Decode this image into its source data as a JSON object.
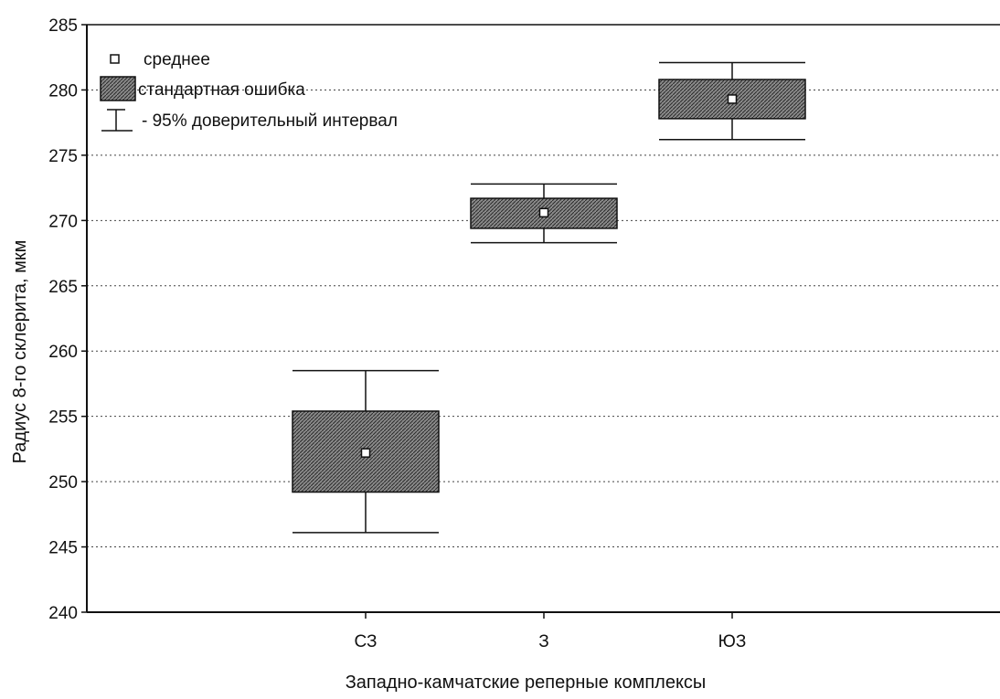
{
  "chart_data": {
    "type": "box",
    "title": "",
    "xlabel": "Западно-камчатские реперные комплексы",
    "ylabel": "Радиус 8-го склерита, мкм",
    "categories": [
      "СЗ",
      "З",
      "ЮЗ"
    ],
    "ylim": [
      240,
      285
    ],
    "yticks": [
      240,
      245,
      250,
      255,
      260,
      265,
      270,
      275,
      280,
      285
    ],
    "grid": true,
    "legend_position": "top-left",
    "legend": {
      "mean": "среднее",
      "se": "стандартная ошибка",
      "ci": "- 95% доверительный интервал"
    },
    "series": [
      {
        "mean": [
          252.2,
          270.6,
          279.3
        ],
        "se_low": [
          249.2,
          269.4,
          277.8
        ],
        "se_high": [
          255.4,
          271.7,
          280.8
        ],
        "ci_low": [
          246.1,
          268.3,
          276.2
        ],
        "ci_high": [
          258.5,
          272.8,
          282.1
        ]
      }
    ],
    "colors": {
      "box": "#8a8a8a",
      "box_stroke": "#111111",
      "mean_marker": "#ffffff"
    }
  }
}
